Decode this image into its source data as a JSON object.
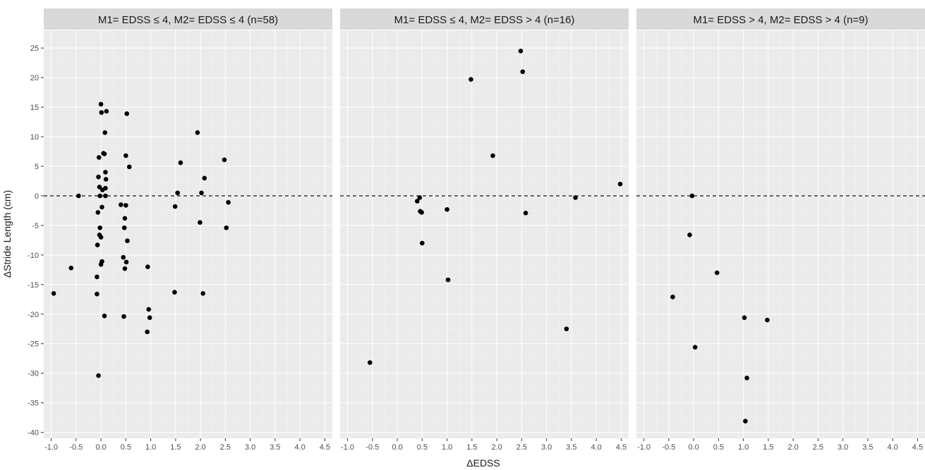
{
  "chart_data": {
    "type": "scatter",
    "xlabel": "ΔEDSS",
    "ylabel": "ΔStride Length (cm)",
    "xlim": [
      -1.15,
      4.65
    ],
    "ylim": [
      -41,
      28
    ],
    "x_ticks": [
      "-1.0",
      "-0.5",
      "0.0",
      "0.5",
      "1.0",
      "1.5",
      "2.0",
      "2.5",
      "3.0",
      "3.5",
      "4.0",
      "4.5"
    ],
    "y_ticks": [
      "-40",
      "-35",
      "-30",
      "-25",
      "-20",
      "-15",
      "-10",
      "-5",
      "0",
      "5",
      "10",
      "15",
      "20",
      "25"
    ],
    "reference_line": {
      "y": 0,
      "style": "dashed"
    },
    "grid": true,
    "panels": [
      {
        "title": "M1= EDSS ≤ 4, M2= EDSS ≤ 4 (n=58)",
        "points": [
          [
            -0.95,
            -16.5
          ],
          [
            -0.6,
            -12.2
          ],
          [
            -0.45,
            0.0
          ],
          [
            -0.05,
            -30.4
          ],
          [
            -0.08,
            -16.6
          ],
          [
            -0.08,
            -13.7
          ],
          [
            -0.07,
            -8.3
          ],
          [
            -0.06,
            -2.8
          ],
          [
            -0.05,
            3.2
          ],
          [
            -0.04,
            6.5
          ],
          [
            -0.03,
            1.5
          ],
          [
            -0.02,
            -5.4
          ],
          [
            -0.03,
            -6.6
          ],
          [
            -0.02,
            0.0
          ],
          [
            0.0,
            15.5
          ],
          [
            0.01,
            14.1
          ],
          [
            0.0,
            -7.0
          ],
          [
            0.0,
            -11.6
          ],
          [
            0.02,
            -11.1
          ],
          [
            0.02,
            -1.9
          ],
          [
            0.03,
            1.0
          ],
          [
            0.05,
            7.2
          ],
          [
            0.07,
            7.1
          ],
          [
            0.07,
            -20.3
          ],
          [
            0.08,
            10.7
          ],
          [
            0.09,
            4.0
          ],
          [
            0.09,
            0.0
          ],
          [
            0.09,
            1.3
          ],
          [
            0.1,
            2.8
          ],
          [
            0.11,
            14.3
          ],
          [
            0.4,
            -1.5
          ],
          [
            0.45,
            -10.4
          ],
          [
            0.46,
            -20.4
          ],
          [
            0.47,
            -5.4
          ],
          [
            0.48,
            -3.8
          ],
          [
            0.48,
            -12.3
          ],
          [
            0.5,
            6.8
          ],
          [
            0.5,
            -1.6
          ],
          [
            0.51,
            -11.2
          ],
          [
            0.52,
            13.9
          ],
          [
            0.53,
            -7.6
          ],
          [
            0.57,
            4.9
          ],
          [
            0.93,
            -23.0
          ],
          [
            0.94,
            -12.0
          ],
          [
            0.96,
            -19.2
          ],
          [
            0.98,
            -20.6
          ],
          [
            1.48,
            -16.3
          ],
          [
            1.49,
            -1.8
          ],
          [
            1.54,
            0.5
          ],
          [
            1.6,
            5.6
          ],
          [
            1.94,
            10.7
          ],
          [
            1.99,
            -4.5
          ],
          [
            2.02,
            0.5
          ],
          [
            2.05,
            -16.5
          ],
          [
            2.08,
            3.0
          ],
          [
            2.48,
            6.1
          ],
          [
            2.52,
            -5.4
          ],
          [
            2.56,
            -1.1
          ]
        ]
      },
      {
        "title": "M1= EDSS ≤ 4, M2= EDSS > 4 (n=16)",
        "points": [
          [
            -0.55,
            -28.2
          ],
          [
            0.4,
            -0.9
          ],
          [
            0.45,
            -0.3
          ],
          [
            0.46,
            -2.6
          ],
          [
            0.49,
            -2.8
          ],
          [
            0.5,
            -8.0
          ],
          [
            1.0,
            -2.3
          ],
          [
            1.02,
            -14.2
          ],
          [
            1.48,
            19.7
          ],
          [
            1.92,
            6.8
          ],
          [
            2.48,
            24.5
          ],
          [
            2.52,
            21.0
          ],
          [
            2.58,
            -2.9
          ],
          [
            3.4,
            -22.5
          ],
          [
            3.58,
            -0.3
          ],
          [
            4.48,
            2.0
          ]
        ]
      },
      {
        "title": "M1= EDSS > 4, M2= EDSS > 4 (n=9)",
        "points": [
          [
            -0.42,
            -17.1
          ],
          [
            -0.08,
            -6.6
          ],
          [
            -0.03,
            0.0
          ],
          [
            0.03,
            -25.6
          ],
          [
            0.47,
            -13.0
          ],
          [
            1.02,
            -20.6
          ],
          [
            1.07,
            -30.8
          ],
          [
            1.04,
            -38.1
          ],
          [
            1.48,
            -21.0
          ]
        ]
      }
    ]
  }
}
